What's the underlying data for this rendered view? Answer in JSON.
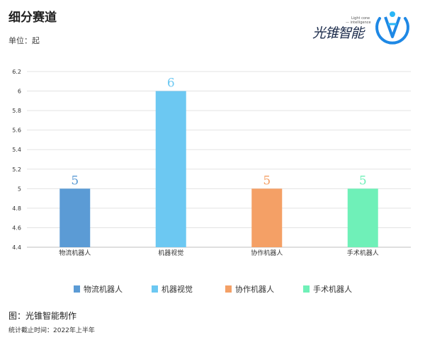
{
  "title": "细分赛道",
  "unit_label": "单位：起",
  "logo": {
    "name": "光锥智能",
    "tagline_1": "Light cone",
    "tagline_2": "— intelligence",
    "icon": "light-cone-logo-icon"
  },
  "footer": {
    "source": "图：光锥智能制作",
    "note": "统计截止时间：2022年上半年"
  },
  "chart_data": {
    "type": "bar",
    "categories": [
      "物流机器人",
      "机器视觉",
      "协作机器人",
      "手术机器人"
    ],
    "values": [
      5,
      6,
      5,
      5
    ],
    "colors": [
      "#5B9BD5",
      "#6CC8F2",
      "#F4A066",
      "#6FF0B8"
    ],
    "ylim": [
      4.4,
      6.2
    ],
    "yticks": [
      "4.4",
      "4.6",
      "4.8",
      "5",
      "5.2",
      "5.4",
      "5.6",
      "5.8",
      "6",
      "6.2"
    ],
    "legend_position": "bottom",
    "grid": true,
    "data_labels": [
      "5",
      "6",
      "5",
      "5"
    ]
  }
}
